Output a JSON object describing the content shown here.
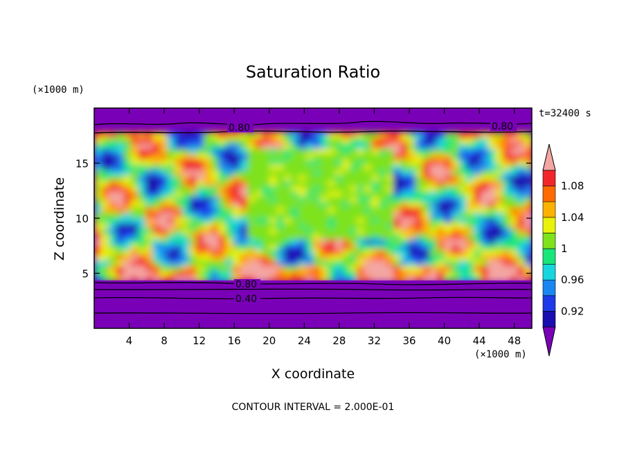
{
  "chart_data": {
    "type": "heatmap",
    "title": "Saturation Ratio",
    "xlabel": "X coordinate",
    "ylabel": "Z coordinate",
    "x_unit": "(×1000 m)",
    "y_unit": "(×1000 m)",
    "time_label": "t=32400 s",
    "footer": "CONTOUR INTERVAL = 2.000E-01",
    "xlim": [
      0,
      50
    ],
    "ylim": [
      0,
      20
    ],
    "xticks": [
      "4",
      "8",
      "12",
      "16",
      "20",
      "24",
      "28",
      "32",
      "36",
      "40",
      "44",
      "48"
    ],
    "yticks": [
      "5",
      "10",
      "15"
    ],
    "colorbar": {
      "labels": [
        "1.08",
        "1.04",
        "1",
        "0.96",
        "0.92"
      ],
      "levels": [
        0.9,
        0.92,
        0.94,
        0.96,
        0.98,
        1.0,
        1.02,
        1.04,
        1.06,
        1.08,
        1.1
      ],
      "colors": [
        "#7a00b8",
        "#1a0eb0",
        "#1c3ae8",
        "#1a86f2",
        "#17d6e0",
        "#18e67a",
        "#7ee21c",
        "#e8f20a",
        "#fcb300",
        "#ff6a00",
        "#f2262a",
        "#f4a6a2"
      ],
      "extend": "both"
    },
    "contour_labels": [
      "0.80",
      "0.80",
      "0.80",
      "0.40"
    ],
    "grid": false
  }
}
